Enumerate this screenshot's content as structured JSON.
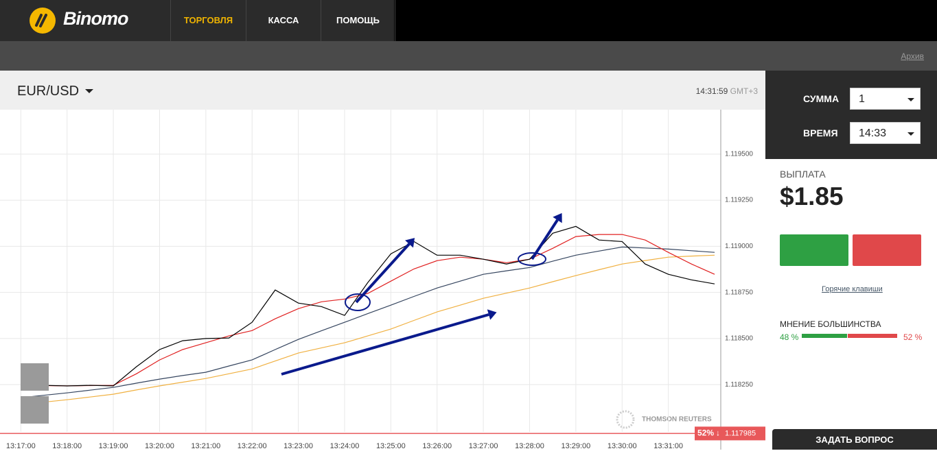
{
  "header": {
    "logo": "Binomo",
    "nav": [
      "ТОРГОВЛЯ",
      "КАССА",
      "ПОМОЩЬ"
    ],
    "archive": "Архив"
  },
  "chart_header": {
    "asset": "EUR/USD",
    "time": "14:31:59",
    "timezone": "GMT+3"
  },
  "chart_data": {
    "type": "line",
    "x": [
      "13:17:00",
      "13:17:30",
      "13:18:00",
      "13:18:30",
      "13:19:00",
      "13:19:30",
      "13:20:00",
      "13:20:30",
      "13:21:00",
      "13:21:30",
      "13:22:00",
      "13:22:30",
      "13:23:00",
      "13:23:30",
      "13:24:00",
      "13:24:30",
      "13:25:00",
      "13:25:30",
      "13:26:00",
      "13:26:30",
      "13:27:00",
      "13:27:30",
      "13:28:00",
      "13:28:30",
      "13:29:00",
      "13:29:30",
      "13:30:00",
      "13:30:30",
      "13:31:00",
      "13:31:30",
      "13:32:00"
    ],
    "series": [
      {
        "color": "#000000",
        "values": [
          1.118246,
          1.118246,
          1.118243,
          1.118246,
          1.118243,
          1.118347,
          1.11844,
          1.118488,
          1.1185,
          1.118503,
          1.118588,
          1.118763,
          1.118692,
          1.118673,
          1.118625,
          1.118803,
          1.118959,
          1.119026,
          1.118952,
          1.118952,
          1.11893,
          1.118904,
          1.11893,
          1.119071,
          1.119108,
          1.119034,
          1.119026,
          1.118904,
          1.118848,
          1.118818,
          1.118796
        ]
      },
      {
        "color": "#e02020",
        "values": [
          1.118246,
          1.118245,
          1.118243,
          1.118245,
          1.118246,
          1.118309,
          1.118384,
          1.11844,
          1.118477,
          1.118514,
          1.118543,
          1.118607,
          1.118662,
          1.118699,
          1.118714,
          1.118744,
          1.118811,
          1.118877,
          1.118922,
          1.118941,
          1.11893,
          1.118911,
          1.11893,
          1.118989,
          1.119053,
          1.119064,
          1.119064,
          1.119034,
          1.118967,
          1.118904,
          1.118848
        ]
      },
      {
        "color": "#34445e",
        "values": [
          1.118179,
          1.118192,
          1.118205,
          1.11822,
          1.118235,
          1.118258,
          1.11828,
          1.118299,
          1.118317,
          1.118351,
          1.118384,
          1.11844,
          1.118495,
          1.118542,
          1.118588,
          1.118635,
          1.118681,
          1.118728,
          1.118774,
          1.118811,
          1.118848,
          1.118867,
          1.118885,
          1.118919,
          1.118952,
          1.118974,
          1.118996,
          1.118991,
          1.118985,
          1.118976,
          1.118967
        ]
      },
      {
        "color": "#f0b040",
        "values": [
          1.118142,
          1.118155,
          1.118168,
          1.118183,
          1.118198,
          1.118221,
          1.118243,
          1.118263,
          1.118283,
          1.118309,
          1.118335,
          1.118378,
          1.118421,
          1.118449,
          1.118477,
          1.118514,
          1.118551,
          1.118598,
          1.118644,
          1.118681,
          1.118718,
          1.118746,
          1.118774,
          1.118808,
          1.118841,
          1.118873,
          1.118904,
          1.118923,
          1.118941,
          1.118947,
          1.118952
        ]
      }
    ],
    "xlim": [
      "13:16:33",
      "13:32:08"
    ],
    "xticks": [
      "13:17:00",
      "13:18:00",
      "13:19:00",
      "13:20:00",
      "13:21:00",
      "13:22:00",
      "13:23:00",
      "13:24:00",
      "13:25:00",
      "13:26:00",
      "13:27:00",
      "13:28:00",
      "13:29:00",
      "13:30:00",
      "13:31:00"
    ],
    "ylim": [
      1.117994,
      1.119741
    ],
    "yticks": [
      {
        "value": 1.1195,
        "label": "1.119500"
      },
      {
        "value": 1.11925,
        "label": "1.119250"
      },
      {
        "value": 1.119,
        "label": "1.119000"
      },
      {
        "value": 1.11875,
        "label": "1.118750"
      },
      {
        "value": 1.1185,
        "label": "1.118500"
      },
      {
        "value": 1.11825,
        "label": "1.118250"
      }
    ],
    "grid": true,
    "current_price": {
      "value": 1.117985,
      "label": "1.117985",
      "percent": "52%",
      "direction": "↓"
    },
    "source": "THOMSON REUTERS"
  },
  "panel": {
    "amount_label": "СУММА",
    "amount": "1",
    "time_label": "ВРЕМЯ",
    "time": "14:33",
    "payout_label": "ВЫПЛАТА",
    "payout": "$1.85",
    "hotkeys": "Горячие клавиши",
    "majority": {
      "title": "МНЕНИЕ БОЛЬШИНСТВА",
      "up": {
        "value": 48,
        "label": "48 %"
      },
      "down": {
        "value": 52,
        "label": "52 %"
      }
    },
    "ask": "ЗАДАТЬ ВОПРОС"
  }
}
